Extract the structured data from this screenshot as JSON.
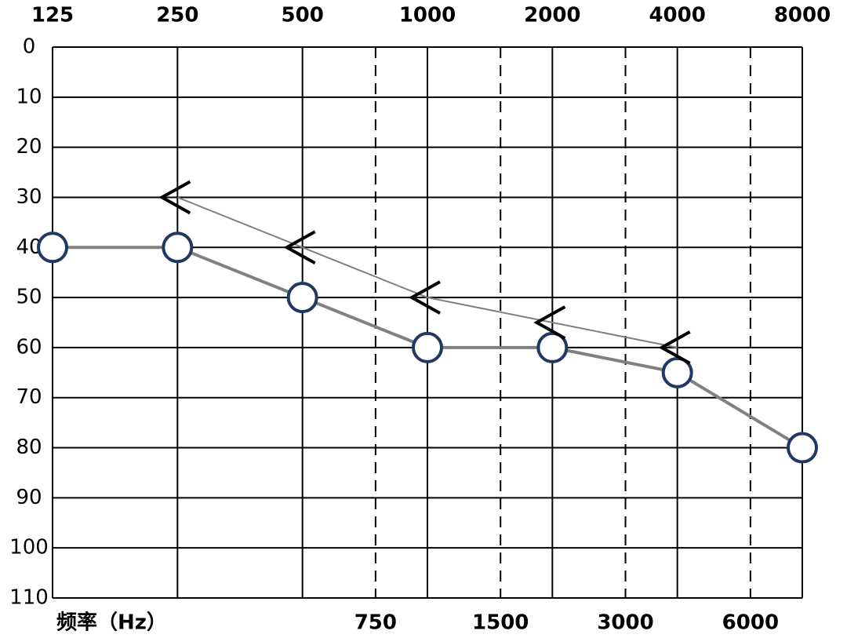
{
  "chart_data": {
    "type": "line",
    "x": [
      125,
      250,
      500,
      1000,
      2000,
      4000,
      8000
    ],
    "xscale": "log",
    "xlim": [
      125,
      8000
    ],
    "xticks": [
      125,
      250,
      500,
      1000,
      2000,
      4000,
      8000
    ],
    "xticks_minor": [
      750,
      1500,
      3000,
      6000
    ],
    "x_label": "频率（Hz）",
    "ylim": [
      0,
      110
    ],
    "y_inverted": true,
    "yticks": [
      0,
      10,
      20,
      30,
      40,
      50,
      60,
      70,
      80,
      90,
      100,
      110
    ],
    "grid": true,
    "series": [
      {
        "color": "#1f3864",
        "line_color": "#808080",
        "marker": "circle",
        "values": [
          40,
          40,
          50,
          60,
          60,
          65,
          80
        ]
      },
      {
        "color": "#000000",
        "line_color": "#808080",
        "marker": "less-than",
        "values": [
          null,
          30,
          40,
          50,
          55,
          60,
          null
        ]
      }
    ]
  }
}
